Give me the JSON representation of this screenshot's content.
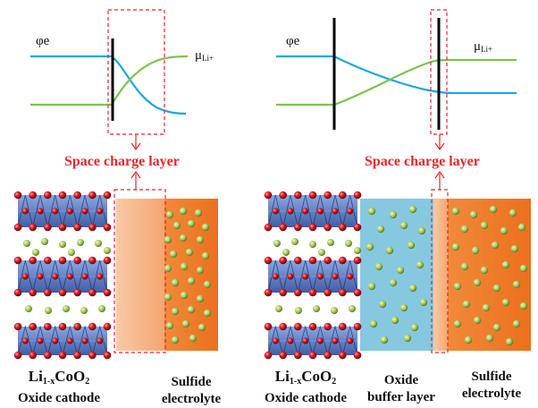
{
  "left_panel": {
    "phi_label": "φe",
    "mu_label_main": "μ",
    "mu_label_sub": "Li+",
    "space_charge_label": "Space charge layer",
    "cathode_label_li": "Li",
    "cathode_label_sub1": "1-x",
    "cathode_label_coo": "CoO",
    "cathode_label_sub2": "2",
    "cathode_label_line2": "Oxide cathode",
    "electrolyte_line1": "Sulfide",
    "electrolyte_line2": "electrolyte"
  },
  "right_panel": {
    "phi_label": "φe",
    "mu_label_main": "μ",
    "mu_label_sub": "Li+",
    "space_charge_label": "Space charge layer",
    "cathode_label_li": "Li",
    "cathode_label_sub1": "1-x",
    "cathode_label_coo": "CoO",
    "cathode_label_sub2": "2",
    "cathode_label_line2": "Oxide cathode",
    "buffer_line1": "Oxide",
    "buffer_line2": "buffer layer",
    "electrolyte_line1": "Sulfide",
    "electrolyte_line2": "electrolyte"
  },
  "colors": {
    "phi_curve": "#1aa7e0",
    "mu_curve": "#7fc24f",
    "space_charge": "#e8262b",
    "sulfide_electrolyte": "#ee7a26",
    "space_charge_region": "#f6b386",
    "oxide_buffer": "#86c8e0",
    "cathode_octahedra": "#3b5fb0",
    "oxygen_atoms": "#c2161c",
    "lithium_atoms": "#a9c95d"
  }
}
